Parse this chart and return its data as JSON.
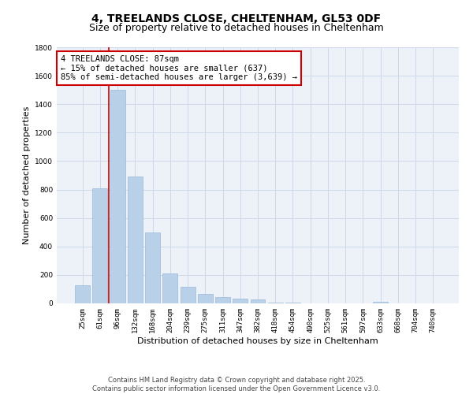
{
  "title_line1": "4, TREELANDS CLOSE, CHELTENHAM, GL53 0DF",
  "title_line2": "Size of property relative to detached houses in Cheltenham",
  "xlabel": "Distribution of detached houses by size in Cheltenham",
  "ylabel": "Number of detached properties",
  "categories": [
    "25sqm",
    "61sqm",
    "96sqm",
    "132sqm",
    "168sqm",
    "204sqm",
    "239sqm",
    "275sqm",
    "311sqm",
    "347sqm",
    "382sqm",
    "418sqm",
    "454sqm",
    "490sqm",
    "525sqm",
    "561sqm",
    "597sqm",
    "633sqm",
    "668sqm",
    "704sqm",
    "740sqm"
  ],
  "values": [
    130,
    810,
    1500,
    890,
    500,
    210,
    115,
    65,
    45,
    32,
    27,
    5,
    3,
    2,
    1,
    1,
    1,
    12,
    1,
    1,
    1
  ],
  "bar_color": "#b8d0e8",
  "bar_edge_color": "#9ab8d8",
  "vline_color": "#cc0000",
  "vline_x": 1.5,
  "annotation_text": "4 TREELANDS CLOSE: 87sqm\n← 15% of detached houses are smaller (637)\n85% of semi-detached houses are larger (3,639) →",
  "annotation_box_color": "#ffffff",
  "annotation_box_edge": "#cc0000",
  "ylim": [
    0,
    1800
  ],
  "yticks": [
    0,
    200,
    400,
    600,
    800,
    1000,
    1200,
    1400,
    1600,
    1800
  ],
  "grid_color": "#cdd8ea",
  "background_color": "#edf2f9",
  "footer_line1": "Contains HM Land Registry data © Crown copyright and database right 2025.",
  "footer_line2": "Contains public sector information licensed under the Open Government Licence v3.0.",
  "title1_fontsize": 10,
  "title2_fontsize": 9,
  "axis_label_fontsize": 8,
  "tick_fontsize": 6.5,
  "annotation_fontsize": 7.5,
  "footer_fontsize": 6
}
